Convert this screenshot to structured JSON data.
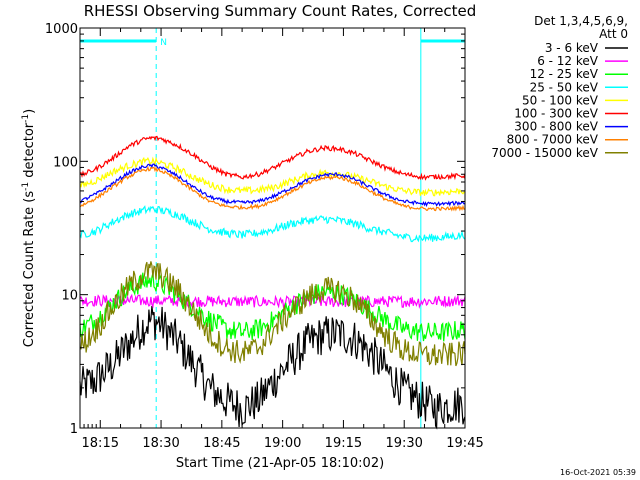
{
  "chart_data": {
    "type": "line",
    "title": "RHESSI Observing Summary Count Rates, Corrected",
    "xlabel": "Start Time (21-Apr-05 18:10:02)",
    "ylabel": "Corrected Count Rate (s^-1 detector^-1)",
    "ylabel_parts": {
      "main": "Corrected Count Rate (s",
      "sup1": "-1",
      "mid": " detector",
      "sup2": "-1",
      "end": ")"
    },
    "x_range_min": [
      10.0,
      105.0
    ],
    "y_scale": "log",
    "ylim": [
      1,
      1000
    ],
    "x_ticks": [
      {
        "t": 15,
        "label": "18:15"
      },
      {
        "t": 30,
        "label": "18:30"
      },
      {
        "t": 45,
        "label": "18:45"
      },
      {
        "t": 60,
        "label": "19:00"
      },
      {
        "t": 75,
        "label": "19:15"
      },
      {
        "t": 90,
        "label": "19:30"
      },
      {
        "t": 105,
        "label": "19:45"
      }
    ],
    "y_ticks": [
      {
        "v": 1,
        "label": "1"
      },
      {
        "v": 10,
        "label": "10"
      },
      {
        "v": 100,
        "label": "100"
      },
      {
        "v": 1000,
        "label": "1000"
      }
    ],
    "legend": {
      "header_line1": "Det 1,3,4,5,6,9,",
      "header_line2": "Att 0",
      "placement": "top-right, outside plot"
    },
    "series": [
      {
        "name": "3 - 6 keV",
        "color": "#000000",
        "points": [
          [
            10,
            2.0
          ],
          [
            14,
            2.3
          ],
          [
            18,
            3.0
          ],
          [
            22,
            4.3
          ],
          [
            26,
            6.0
          ],
          [
            28,
            6.5
          ],
          [
            30,
            6.0
          ],
          [
            34,
            4.5
          ],
          [
            38,
            3.0
          ],
          [
            42,
            2.0
          ],
          [
            46,
            1.6
          ],
          [
            50,
            1.4
          ],
          [
            54,
            1.6
          ],
          [
            58,
            2.3
          ],
          [
            62,
            3.2
          ],
          [
            66,
            4.3
          ],
          [
            70,
            5.0
          ],
          [
            74,
            5.1
          ],
          [
            78,
            4.6
          ],
          [
            82,
            3.6
          ],
          [
            86,
            2.6
          ],
          [
            90,
            1.9
          ],
          [
            94,
            1.6
          ],
          [
            98,
            1.4
          ],
          [
            102,
            1.5
          ],
          [
            105,
            1.5
          ]
        ]
      },
      {
        "name": "6 - 12 keV",
        "color": "#ff00ff",
        "points": [
          [
            10,
            9.0
          ],
          [
            30,
            9.0
          ],
          [
            60,
            8.8
          ],
          [
            90,
            8.9
          ],
          [
            105,
            9.0
          ]
        ]
      },
      {
        "name": "12 - 25 keV",
        "color": "#00ff00",
        "points": [
          [
            10,
            5.5
          ],
          [
            14,
            6.5
          ],
          [
            18,
            8.5
          ],
          [
            22,
            11.0
          ],
          [
            26,
            12.5
          ],
          [
            28,
            12.8
          ],
          [
            30,
            12.0
          ],
          [
            34,
            10.0
          ],
          [
            38,
            8.0
          ],
          [
            42,
            6.5
          ],
          [
            46,
            5.5
          ],
          [
            50,
            5.2
          ],
          [
            54,
            5.5
          ],
          [
            58,
            6.5
          ],
          [
            62,
            8.0
          ],
          [
            66,
            9.5
          ],
          [
            70,
            10.5
          ],
          [
            74,
            10.2
          ],
          [
            78,
            9.0
          ],
          [
            82,
            7.5
          ],
          [
            86,
            6.3
          ],
          [
            90,
            5.5
          ],
          [
            95,
            5.2
          ],
          [
            100,
            5.2
          ],
          [
            105,
            5.5
          ]
        ]
      },
      {
        "name": "25 - 50 keV",
        "color": "#00ffff",
        "points": [
          [
            10,
            28
          ],
          [
            14,
            30
          ],
          [
            18,
            35
          ],
          [
            22,
            40
          ],
          [
            26,
            43
          ],
          [
            28,
            44
          ],
          [
            30,
            43
          ],
          [
            34,
            40
          ],
          [
            38,
            35
          ],
          [
            42,
            31
          ],
          [
            46,
            29
          ],
          [
            50,
            28
          ],
          [
            54,
            29
          ],
          [
            58,
            31
          ],
          [
            62,
            34
          ],
          [
            66,
            36
          ],
          [
            70,
            37
          ],
          [
            74,
            36
          ],
          [
            78,
            34
          ],
          [
            82,
            31
          ],
          [
            86,
            29
          ],
          [
            90,
            27
          ],
          [
            95,
            26.5
          ],
          [
            100,
            27
          ],
          [
            105,
            28
          ]
        ]
      },
      {
        "name": "50 - 100 keV",
        "color": "#ffff00",
        "points": [
          [
            10,
            65
          ],
          [
            14,
            72
          ],
          [
            18,
            83
          ],
          [
            22,
            93
          ],
          [
            26,
            100
          ],
          [
            28,
            100
          ],
          [
            30,
            97
          ],
          [
            34,
            88
          ],
          [
            38,
            76
          ],
          [
            42,
            67
          ],
          [
            46,
            62
          ],
          [
            50,
            60
          ],
          [
            54,
            61
          ],
          [
            58,
            64
          ],
          [
            62,
            71
          ],
          [
            66,
            78
          ],
          [
            70,
            82
          ],
          [
            74,
            81
          ],
          [
            78,
            76
          ],
          [
            82,
            70
          ],
          [
            86,
            64
          ],
          [
            90,
            60
          ],
          [
            95,
            58
          ],
          [
            100,
            59
          ],
          [
            105,
            60
          ]
        ]
      },
      {
        "name": "100 - 300 keV",
        "color": "#ff0000",
        "points": [
          [
            10,
            78
          ],
          [
            14,
            88
          ],
          [
            18,
            105
          ],
          [
            22,
            130
          ],
          [
            26,
            147
          ],
          [
            28,
            150
          ],
          [
            30,
            148
          ],
          [
            34,
            132
          ],
          [
            38,
            112
          ],
          [
            42,
            92
          ],
          [
            46,
            80
          ],
          [
            50,
            76
          ],
          [
            54,
            80
          ],
          [
            58,
            90
          ],
          [
            62,
            104
          ],
          [
            66,
            118
          ],
          [
            70,
            126
          ],
          [
            74,
            124
          ],
          [
            78,
            114
          ],
          [
            82,
            100
          ],
          [
            86,
            88
          ],
          [
            90,
            80
          ],
          [
            95,
            76
          ],
          [
            100,
            77
          ],
          [
            105,
            78
          ]
        ]
      },
      {
        "name": "300 - 800 keV",
        "color": "#0000ff",
        "points": [
          [
            10,
            50
          ],
          [
            14,
            57
          ],
          [
            18,
            68
          ],
          [
            22,
            82
          ],
          [
            26,
            92
          ],
          [
            28,
            93
          ],
          [
            30,
            90
          ],
          [
            34,
            78
          ],
          [
            38,
            64
          ],
          [
            42,
            54
          ],
          [
            46,
            50
          ],
          [
            50,
            49
          ],
          [
            54,
            50
          ],
          [
            58,
            55
          ],
          [
            62,
            63
          ],
          [
            66,
            72
          ],
          [
            70,
            79
          ],
          [
            74,
            80
          ],
          [
            78,
            73
          ],
          [
            82,
            63
          ],
          [
            86,
            55
          ],
          [
            90,
            50
          ],
          [
            95,
            48
          ],
          [
            100,
            48
          ],
          [
            105,
            49
          ]
        ]
      },
      {
        "name": "800 - 7000 keV",
        "color": "#ff8000",
        "points": [
          [
            10,
            46
          ],
          [
            14,
            53
          ],
          [
            18,
            64
          ],
          [
            22,
            77
          ],
          [
            26,
            87
          ],
          [
            28,
            88
          ],
          [
            30,
            85
          ],
          [
            34,
            73
          ],
          [
            38,
            60
          ],
          [
            42,
            50
          ],
          [
            46,
            46
          ],
          [
            50,
            45
          ],
          [
            54,
            46
          ],
          [
            58,
            51
          ],
          [
            62,
            59
          ],
          [
            66,
            68
          ],
          [
            70,
            75
          ],
          [
            74,
            76
          ],
          [
            78,
            69
          ],
          [
            82,
            59
          ],
          [
            86,
            51
          ],
          [
            90,
            46
          ],
          [
            95,
            44
          ],
          [
            100,
            44
          ],
          [
            105,
            45
          ]
        ]
      },
      {
        "name": "7000 - 15000 keV",
        "color": "#808000",
        "points": [
          [
            10,
            4.0
          ],
          [
            14,
            5.5
          ],
          [
            18,
            8.0
          ],
          [
            22,
            11.5
          ],
          [
            26,
            14.5
          ],
          [
            28,
            15.0
          ],
          [
            30,
            14.0
          ],
          [
            34,
            11.0
          ],
          [
            38,
            7.5
          ],
          [
            42,
            5.0
          ],
          [
            46,
            4.0
          ],
          [
            50,
            3.6
          ],
          [
            54,
            4.0
          ],
          [
            58,
            5.5
          ],
          [
            62,
            7.5
          ],
          [
            66,
            9.5
          ],
          [
            70,
            11.0
          ],
          [
            74,
            10.8
          ],
          [
            78,
            9.0
          ],
          [
            82,
            6.5
          ],
          [
            86,
            4.7
          ],
          [
            90,
            3.8
          ],
          [
            95,
            3.5
          ],
          [
            100,
            3.5
          ],
          [
            105,
            3.6
          ]
        ]
      }
    ],
    "annotations": {
      "cyan_vertical_lines_min": [
        10.0,
        28.8,
        94.1,
        105.0
      ],
      "night_bar_segments_min": [
        [
          10.0,
          28.8
        ],
        [
          94.1,
          105.0
        ]
      ],
      "saa_marker_label": "N",
      "saa_marker_at_min": 28.8
    },
    "timestamp": "16-Oct-2021 05:39"
  }
}
